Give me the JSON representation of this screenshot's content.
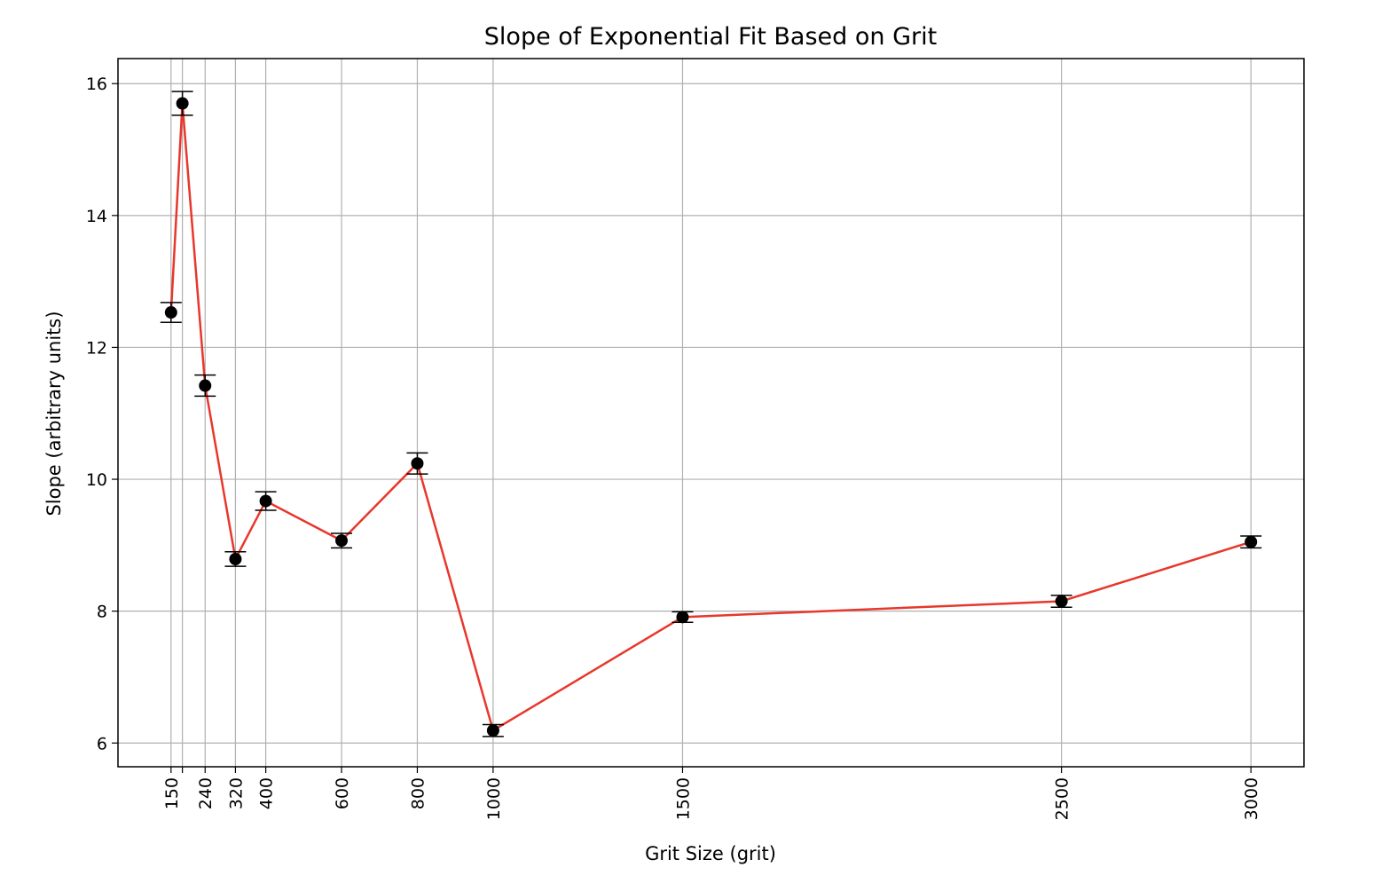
{
  "chart_data": {
    "type": "line",
    "title": "Slope of Exponential Fit Based on Grit",
    "xlabel": "Grit Size (grit)",
    "ylabel": "Slope (arbitrary units)",
    "xlim": [
      10,
      3140
    ],
    "ylim": [
      5.64,
      16.38
    ],
    "grid": true,
    "x_ticks": [
      150,
      180,
      240,
      320,
      400,
      600,
      800,
      1000,
      1500,
      2500,
      3000
    ],
    "x_tick_labels": [
      "150",
      "",
      "240",
      "320",
      "400",
      "600",
      "800",
      "1000",
      "1500",
      "2500",
      "3000"
    ],
    "y_ticks": [
      6,
      8,
      10,
      12,
      14,
      16
    ],
    "y_tick_labels": [
      "6",
      "8",
      "10",
      "12",
      "14",
      "16"
    ],
    "series": [
      {
        "name": "slope",
        "line_color": "#e8372c",
        "marker_color": "#000000",
        "x": [
          150,
          180,
          240,
          320,
          400,
          600,
          800,
          1000,
          1500,
          2500,
          3000
        ],
        "y": [
          12.53,
          15.7,
          11.42,
          8.79,
          9.67,
          9.07,
          10.24,
          6.19,
          7.91,
          8.15,
          9.05
        ],
        "yerr": [
          0.15,
          0.18,
          0.16,
          0.11,
          0.14,
          0.11,
          0.16,
          0.09,
          0.08,
          0.09,
          0.09
        ]
      }
    ]
  }
}
